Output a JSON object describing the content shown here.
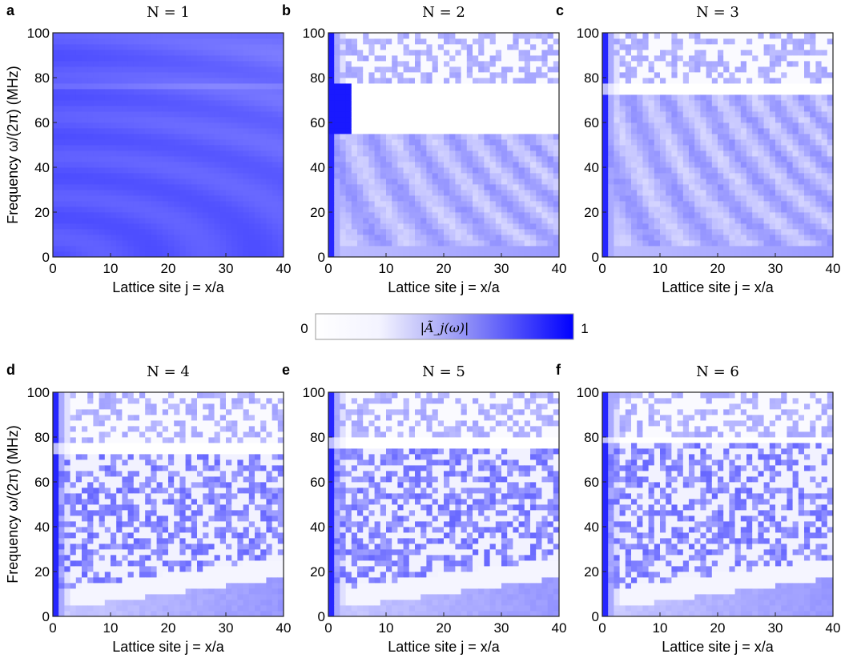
{
  "figure": {
    "colorbar": {
      "min_label": "0",
      "max_label": "1",
      "label": "|Ã_j(ω)|",
      "colors": [
        "#ffffff",
        "#0000ff"
      ]
    },
    "axis_labels": {
      "xlabel": "Lattice site j = x/a",
      "ylabel": "Frequency ω/(2π) (MHz)"
    }
  },
  "chart_data": [
    {
      "type": "heatmap",
      "panel": "a",
      "title": "N = 1",
      "xlabel": "Lattice site j = x/a",
      "ylabel": "Frequency ω/(2π) (MHz)",
      "xlim": [
        0,
        40
      ],
      "ylim": [
        0,
        100
      ],
      "x_ticks": [
        "0",
        "10",
        "20",
        "30",
        "40"
      ],
      "y_ticks": [
        "0",
        "20",
        "40",
        "60",
        "80",
        "100"
      ],
      "description_values": {
        "low_band": [
          0,
          100
        ],
        "dominant_level": 0.7
      }
    },
    {
      "type": "heatmap",
      "panel": "b",
      "title": "N = 2",
      "xlabel": "Lattice site j = x/a",
      "ylabel": "",
      "xlim": [
        0,
        40
      ],
      "ylim": [
        0,
        100
      ],
      "x_ticks": [
        "0",
        "10",
        "20",
        "30",
        "40"
      ],
      "y_ticks": [
        "0",
        "20",
        "40",
        "60",
        "80",
        "100"
      ],
      "gap_MHz": [
        55,
        78
      ]
    },
    {
      "type": "heatmap",
      "panel": "c",
      "title": "N = 3",
      "xlabel": "Lattice site j = x/a",
      "ylabel": "",
      "xlim": [
        0,
        40
      ],
      "ylim": [
        0,
        100
      ],
      "x_ticks": [
        "0",
        "10",
        "20",
        "30",
        "40"
      ],
      "y_ticks": [
        "0",
        "20",
        "40",
        "60",
        "80",
        "100"
      ],
      "gap_MHz": [
        73,
        77
      ]
    },
    {
      "type": "heatmap",
      "panel": "d",
      "title": "N = 4",
      "xlabel": "Lattice site j = x/a",
      "ylabel": "Frequency ω/(2π) (MHz)",
      "xlim": [
        0,
        40
      ],
      "ylim": [
        0,
        100
      ],
      "x_ticks": [
        "0",
        "10",
        "20",
        "30",
        "40"
      ],
      "y_ticks": [
        "0",
        "20",
        "40",
        "60",
        "80",
        "100"
      ],
      "gap_MHz": [
        73,
        78
      ]
    },
    {
      "type": "heatmap",
      "panel": "e",
      "title": "N = 5",
      "xlabel": "Lattice site j = x/a",
      "ylabel": "",
      "xlim": [
        0,
        40
      ],
      "ylim": [
        0,
        100
      ],
      "x_ticks": [
        "0",
        "10",
        "20",
        "30",
        "40"
      ],
      "y_ticks": [
        "0",
        "20",
        "40",
        "60",
        "80",
        "100"
      ],
      "gap_MHz": [
        75,
        79
      ]
    },
    {
      "type": "heatmap",
      "panel": "f",
      "title": "N = 6",
      "xlabel": "Lattice site j = x/a",
      "ylabel": "",
      "xlim": [
        0,
        40
      ],
      "ylim": [
        0,
        100
      ],
      "x_ticks": [
        "0",
        "10",
        "20",
        "30",
        "40"
      ],
      "y_ticks": [
        "0",
        "20",
        "40",
        "60",
        "80",
        "100"
      ],
      "gap_MHz": [
        77,
        80
      ]
    }
  ]
}
